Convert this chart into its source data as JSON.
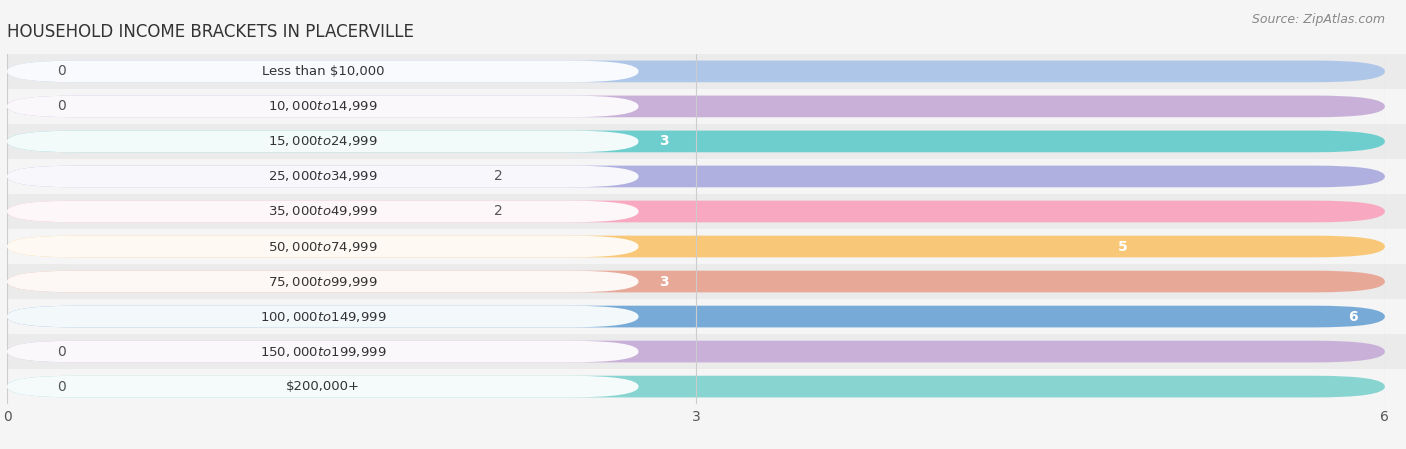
{
  "title": "HOUSEHOLD INCOME BRACKETS IN PLACERVILLE",
  "source": "Source: ZipAtlas.com",
  "categories": [
    "Less than $10,000",
    "$10,000 to $14,999",
    "$15,000 to $24,999",
    "$25,000 to $34,999",
    "$35,000 to $49,999",
    "$50,000 to $74,999",
    "$75,000 to $99,999",
    "$100,000 to $149,999",
    "$150,000 to $199,999",
    "$200,000+"
  ],
  "values": [
    0,
    0,
    3,
    2,
    2,
    5,
    3,
    6,
    0,
    0
  ],
  "bar_colors": [
    "#aec6e8",
    "#c8b0d8",
    "#6ecece",
    "#b0b0e0",
    "#f8a8c0",
    "#f8c878",
    "#e8a898",
    "#78aad8",
    "#c8b0d8",
    "#88d4d0"
  ],
  "xlim": [
    0,
    6
  ],
  "xticks": [
    0,
    3,
    6
  ],
  "bar_height": 0.62,
  "background_color": "#f5f5f5",
  "row_colors": [
    "#ebebeb",
    "#f5f5f5"
  ],
  "label_color": "#555555",
  "value_color_inside": "#ffffff",
  "value_color_outside": "#555555",
  "title_fontsize": 12,
  "label_fontsize": 9.5,
  "tick_fontsize": 10,
  "source_fontsize": 9
}
